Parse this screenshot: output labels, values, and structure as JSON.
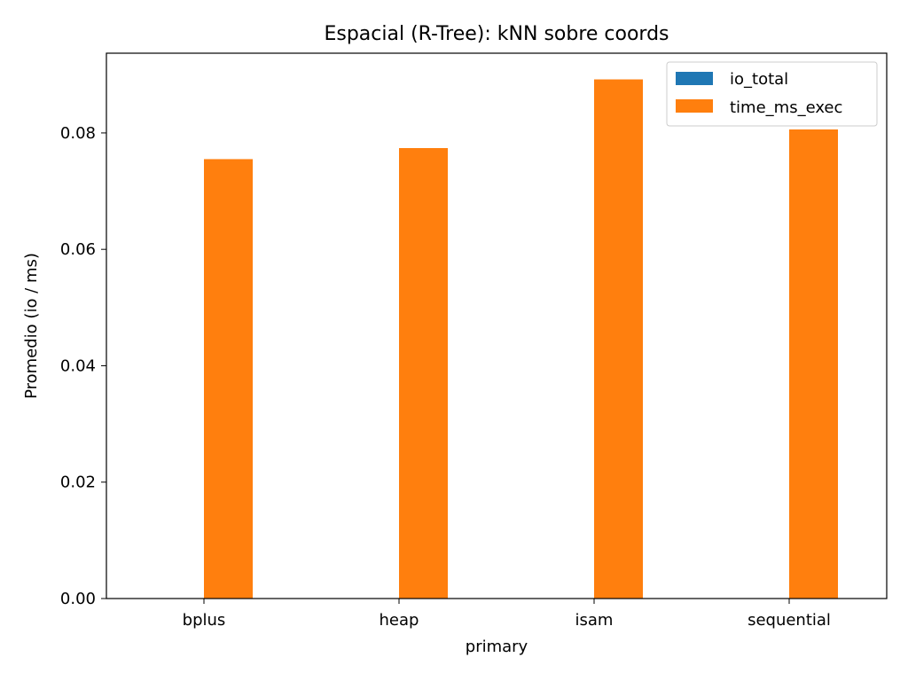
{
  "chart_data": {
    "type": "bar",
    "title": "Espacial (R-Tree): kNN sobre coords",
    "xlabel": "primary",
    "ylabel": "Promedio (io / ms)",
    "categories": [
      "bplus",
      "heap",
      "isam",
      "sequential"
    ],
    "series": [
      {
        "name": "io_total",
        "values": [
          0,
          0,
          0,
          0
        ],
        "color": "#1f77b4"
      },
      {
        "name": "time_ms_exec",
        "values": [
          0.0755,
          0.0774,
          0.0892,
          0.0806
        ],
        "color": "#ff7f0e"
      }
    ],
    "ylim": [
      0,
      0.0937
    ],
    "yticks": [
      0,
      0.02,
      0.04,
      0.06,
      0.08
    ],
    "ytick_labels": [
      "0.00",
      "0.02",
      "0.04",
      "0.06",
      "0.08"
    ],
    "grid": false,
    "legend_position": "top-right"
  }
}
